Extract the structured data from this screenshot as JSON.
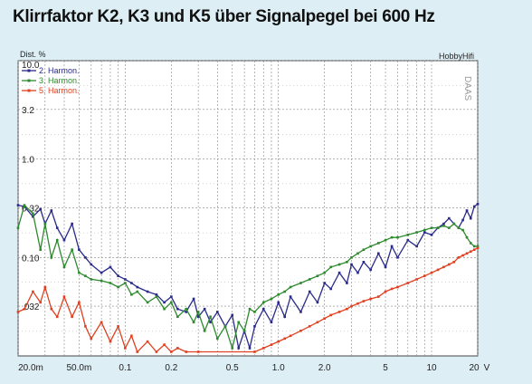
{
  "title": "Klirrfaktor K2, K3 und K5 über Signalpegel bei 600 Hz",
  "chart_data": {
    "type": "line",
    "title": "Klirrfaktor K2, K3 und K5 über Signalpegel bei 600 Hz",
    "ylabel": "Dist. %",
    "xlabel": "",
    "x_unit": "V",
    "brand": "HobbyHifi",
    "watermark": "DAAS",
    "x_scale": "log",
    "y_scale": "log",
    "xlim": [
      0.02,
      20
    ],
    "ylim": [
      0.01,
      10
    ],
    "grid": true,
    "legend_position": "top-left",
    "x_ticks": [
      {
        "v": 0.02,
        "label": "20.0m"
      },
      {
        "v": 0.05,
        "label": "50.0m"
      },
      {
        "v": 0.1,
        "label": "0.1"
      },
      {
        "v": 0.2,
        "label": "0.2"
      },
      {
        "v": 0.5,
        "label": "0.5"
      },
      {
        "v": 1,
        "label": "1.0"
      },
      {
        "v": 2,
        "label": "2.0"
      },
      {
        "v": 5,
        "label": "5"
      },
      {
        "v": 10,
        "label": "10"
      },
      {
        "v": 20,
        "label": "20"
      }
    ],
    "y_ticks": [
      {
        "v": 10,
        "label": "10.0"
      },
      {
        "v": 3.2,
        "label": "3.2"
      },
      {
        "v": 1,
        "label": "1.0"
      },
      {
        "v": 0.32,
        "label": "0.32"
      },
      {
        "v": 0.1,
        "label": "0.10"
      },
      {
        "v": 0.032,
        "label": ".032"
      }
    ],
    "series": [
      {
        "name": "2. Harmon.",
        "color": "#2a2a8a",
        "x": [
          0.02,
          0.022,
          0.025,
          0.028,
          0.03,
          0.033,
          0.036,
          0.04,
          0.045,
          0.05,
          0.055,
          0.06,
          0.07,
          0.08,
          0.09,
          0.1,
          0.11,
          0.12,
          0.14,
          0.16,
          0.18,
          0.2,
          0.22,
          0.25,
          0.28,
          0.3,
          0.33,
          0.36,
          0.4,
          0.45,
          0.5,
          0.55,
          0.6,
          0.65,
          0.7,
          0.8,
          0.9,
          1.0,
          1.1,
          1.2,
          1.4,
          1.6,
          1.8,
          2.0,
          2.2,
          2.5,
          2.8,
          3.0,
          3.3,
          3.6,
          4.0,
          4.5,
          5.0,
          5.5,
          6.0,
          7.0,
          8.0,
          9.0,
          10,
          11,
          12,
          13,
          14,
          15,
          16,
          17,
          18,
          19,
          20
        ],
        "y": [
          0.34,
          0.33,
          0.26,
          0.31,
          0.22,
          0.3,
          0.2,
          0.15,
          0.22,
          0.12,
          0.1,
          0.085,
          0.07,
          0.08,
          0.065,
          0.06,
          0.055,
          0.05,
          0.045,
          0.042,
          0.035,
          0.04,
          0.03,
          0.028,
          0.038,
          0.025,
          0.03,
          0.022,
          0.028,
          0.02,
          0.026,
          0.012,
          0.018,
          0.012,
          0.02,
          0.03,
          0.022,
          0.035,
          0.025,
          0.04,
          0.028,
          0.045,
          0.035,
          0.055,
          0.048,
          0.07,
          0.055,
          0.085,
          0.07,
          0.09,
          0.075,
          0.11,
          0.08,
          0.13,
          0.1,
          0.15,
          0.13,
          0.18,
          0.17,
          0.2,
          0.22,
          0.25,
          0.22,
          0.2,
          0.24,
          0.3,
          0.25,
          0.33,
          0.35
        ]
      },
      {
        "name": "3. Harmon.",
        "color": "#2e8a2e",
        "x": [
          0.02,
          0.022,
          0.025,
          0.028,
          0.03,
          0.033,
          0.036,
          0.04,
          0.045,
          0.05,
          0.055,
          0.06,
          0.07,
          0.08,
          0.09,
          0.1,
          0.11,
          0.12,
          0.14,
          0.16,
          0.18,
          0.2,
          0.22,
          0.25,
          0.28,
          0.3,
          0.33,
          0.36,
          0.4,
          0.45,
          0.5,
          0.55,
          0.6,
          0.65,
          0.7,
          0.8,
          0.9,
          1.0,
          1.1,
          1.2,
          1.4,
          1.6,
          1.8,
          2.0,
          2.2,
          2.5,
          2.8,
          3.0,
          3.3,
          3.6,
          4.0,
          4.5,
          5.0,
          5.5,
          6.0,
          7.0,
          8.0,
          9.0,
          10,
          11,
          12,
          13,
          14,
          15,
          16,
          17,
          18,
          19,
          20
        ],
        "y": [
          0.2,
          0.34,
          0.28,
          0.12,
          0.22,
          0.1,
          0.15,
          0.08,
          0.12,
          0.07,
          0.065,
          0.06,
          0.058,
          0.055,
          0.05,
          0.055,
          0.042,
          0.045,
          0.035,
          0.04,
          0.03,
          0.035,
          0.025,
          0.03,
          0.022,
          0.028,
          0.018,
          0.025,
          0.015,
          0.02,
          0.012,
          0.022,
          0.018,
          0.03,
          0.028,
          0.035,
          0.038,
          0.042,
          0.045,
          0.05,
          0.055,
          0.06,
          0.065,
          0.07,
          0.08,
          0.085,
          0.09,
          0.1,
          0.11,
          0.12,
          0.13,
          0.14,
          0.15,
          0.16,
          0.16,
          0.17,
          0.18,
          0.19,
          0.2,
          0.2,
          0.21,
          0.2,
          0.22,
          0.2,
          0.19,
          0.16,
          0.14,
          0.13,
          0.13
        ]
      },
      {
        "name": "5. Harmon.",
        "color": "#e04020",
        "x": [
          0.02,
          0.022,
          0.025,
          0.028,
          0.03,
          0.033,
          0.036,
          0.04,
          0.045,
          0.05,
          0.055,
          0.06,
          0.07,
          0.08,
          0.09,
          0.1,
          0.11,
          0.12,
          0.14,
          0.16,
          0.18,
          0.2,
          0.22,
          0.25,
          0.3,
          0.7,
          0.8,
          0.9,
          1.0,
          1.1,
          1.2,
          1.4,
          1.6,
          1.8,
          2.0,
          2.2,
          2.5,
          2.8,
          3.0,
          3.3,
          3.6,
          4.0,
          4.5,
          5.0,
          5.5,
          6.0,
          7.0,
          8.0,
          9.0,
          10,
          11,
          12,
          13,
          14,
          15,
          16,
          17,
          18,
          19,
          20
        ],
        "y": [
          0.028,
          0.03,
          0.045,
          0.035,
          0.05,
          0.03,
          0.025,
          0.04,
          0.025,
          0.035,
          0.02,
          0.015,
          0.022,
          0.014,
          0.02,
          0.012,
          0.016,
          0.011,
          0.014,
          0.011,
          0.013,
          0.011,
          0.012,
          0.011,
          0.011,
          0.011,
          0.012,
          0.013,
          0.014,
          0.015,
          0.016,
          0.018,
          0.02,
          0.022,
          0.024,
          0.026,
          0.028,
          0.03,
          0.032,
          0.034,
          0.036,
          0.038,
          0.04,
          0.045,
          0.048,
          0.05,
          0.055,
          0.06,
          0.065,
          0.07,
          0.075,
          0.08,
          0.085,
          0.09,
          0.1,
          0.105,
          0.11,
          0.115,
          0.12,
          0.125
        ]
      }
    ]
  }
}
